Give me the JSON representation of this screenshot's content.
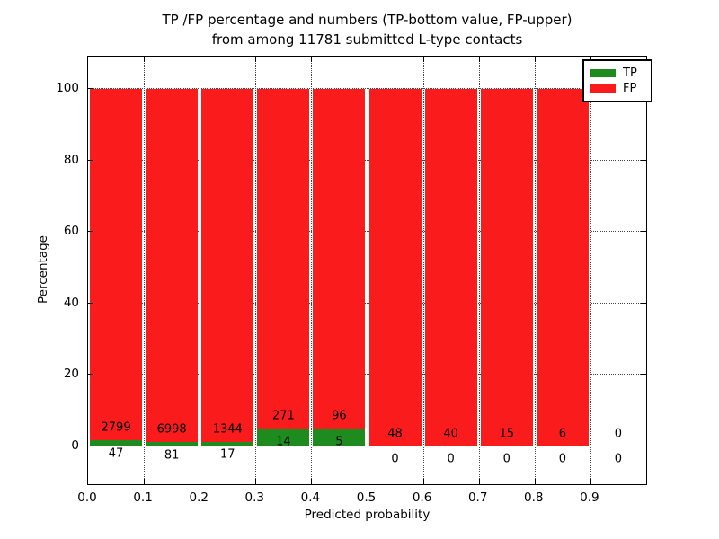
{
  "chart": {
    "title_line1": "TP /FP percentage and numbers (TP-bottom value, FP-upper)",
    "title_line2": "from among 11781 submitted L-type contacts",
    "xlabel": "Predicted probability",
    "ylabel": "Percentage"
  },
  "legend": {
    "items": [
      {
        "label": "TP",
        "color": "#1e8b1e"
      },
      {
        "label": "FP",
        "color": "#fa1b1c"
      }
    ]
  },
  "chart_data": {
    "type": "bar",
    "stacked": true,
    "title": "TP /FP percentage and numbers (TP-bottom value, FP-upper) from among 11781 submitted L-type contacts",
    "total_submitted_contacts": 11781,
    "xlabel": "Predicted probability",
    "ylabel": "Percentage",
    "xlim": [
      0.0,
      1.0
    ],
    "ylim": [
      -11,
      110
    ],
    "grid": "dotted",
    "legend_position": "upper right",
    "x_tick_labels": [
      "0.0",
      "0.1",
      "0.2",
      "0.3",
      "0.4",
      "0.5",
      "0.6",
      "0.7",
      "0.8",
      "0.9"
    ],
    "y_tick_values": [
      0,
      20,
      40,
      60,
      80,
      100
    ],
    "bin_edges": [
      0.0,
      0.1,
      0.2,
      0.3,
      0.4,
      0.5,
      0.6,
      0.7,
      0.8,
      0.9,
      1.0
    ],
    "series": [
      {
        "name": "TP",
        "color": "#1e8b1e",
        "counts": [
          47,
          81,
          17,
          14,
          5,
          0,
          0,
          0,
          0,
          0
        ]
      },
      {
        "name": "FP",
        "color": "#fa1b1c",
        "counts": [
          2799,
          6998,
          1344,
          271,
          96,
          48,
          40,
          15,
          6,
          0
        ]
      }
    ],
    "tp_percent_by_bin": [
      1.65,
      1.14,
      1.25,
      4.91,
      4.95,
      0,
      0,
      0,
      0,
      0
    ],
    "bar_heights_percent_note": "green TP bar height = tp/(tp+fp)*100; red FP bar fills up to 100"
  }
}
